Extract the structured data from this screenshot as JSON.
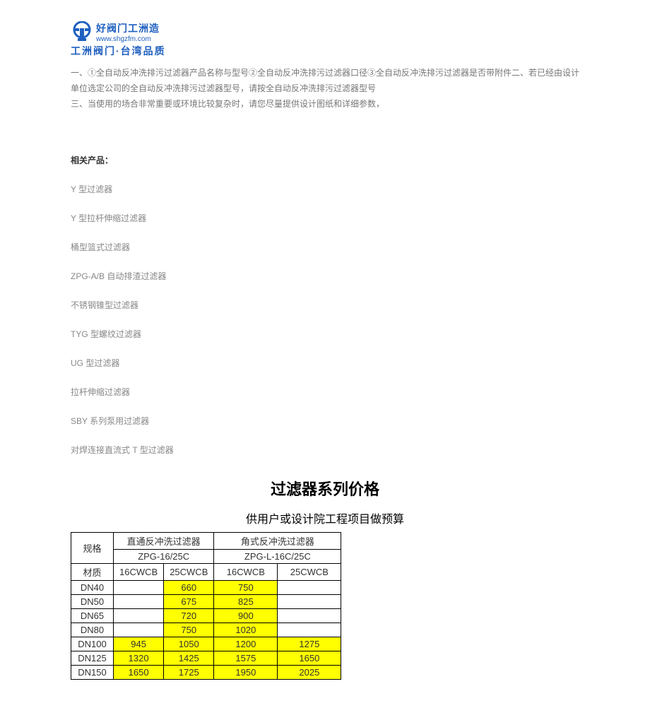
{
  "logo": {
    "top_line": "好阀门工洲造",
    "url": "www.shgzfm.com",
    "bottom_line": "工洲阀门·台湾品质",
    "color": "#2060c0"
  },
  "intro": {
    "line1": "一、①全自动反冲洗排污过滤器产品名称与型号②全自动反冲洗排污过滤器口径③全自动反冲洗排污过滤器是否带附件二、若已经由设计单位选定公司的全自动反冲洗排污过滤器型号，请按全自动反冲洗排污过滤器型号",
    "line2": "三、当使用的场合非常重要或环境比较复杂时，请您尽量提供设计图纸和详细参数，"
  },
  "related_header": "相关产品：",
  "products": [
    "Y 型过滤器",
    "Y 型拉杆伸缩过滤器",
    "桶型篮式过滤器",
    "ZPG-A/B 自动排渣过滤器",
    "不锈钢锥型过滤器",
    "TYG 型螺纹过滤器",
    "UG 型过滤器",
    "拉杆伸缩过滤器",
    "SBY 系列泵用过滤器",
    "对焊连接直流式 T 型过滤器"
  ],
  "price_section": {
    "title": "过滤器系列价格",
    "subtitle": "供用户或设计院工程项目做预算"
  },
  "table": {
    "header": {
      "spec": "规格",
      "group1": "直通反冲洗过滤器",
      "group2": "角式反冲洗过滤器",
      "model1": "ZPG-16/25C",
      "model2": "ZPG-L-16C/25C",
      "material_label": "材质",
      "mat1": "16CWCB",
      "mat2": "25CWCB",
      "mat3": "16CWCB",
      "mat4": "25CWCB"
    },
    "rows": [
      {
        "spec": "DN40",
        "a": "",
        "a_hl": false,
        "b": "660",
        "b_hl": true,
        "c": "750",
        "c_hl": true,
        "d": "",
        "d_hl": false
      },
      {
        "spec": "DN50",
        "a": "",
        "a_hl": false,
        "b": "675",
        "b_hl": true,
        "c": "825",
        "c_hl": true,
        "d": "",
        "d_hl": false
      },
      {
        "spec": "DN65",
        "a": "",
        "a_hl": false,
        "b": "720",
        "b_hl": true,
        "c": "900",
        "c_hl": true,
        "d": "",
        "d_hl": false
      },
      {
        "spec": "DN80",
        "a": "",
        "a_hl": false,
        "b": "750",
        "b_hl": true,
        "c": "1020",
        "c_hl": true,
        "d": "",
        "d_hl": false
      },
      {
        "spec": "DN100",
        "a": "945",
        "a_hl": true,
        "b": "1050",
        "b_hl": true,
        "c": "1200",
        "c_hl": true,
        "d": "1275",
        "d_hl": true
      },
      {
        "spec": "DN125",
        "a": "1320",
        "a_hl": true,
        "b": "1425",
        "b_hl": true,
        "c": "1575",
        "c_hl": true,
        "d": "1650",
        "d_hl": true
      },
      {
        "spec": "DN150",
        "a": "1650",
        "a_hl": true,
        "b": "1725",
        "b_hl": true,
        "c": "1950",
        "c_hl": true,
        "d": "2025",
        "d_hl": true
      }
    ],
    "highlight_color": "#ffff00",
    "border_color": "#000000"
  }
}
